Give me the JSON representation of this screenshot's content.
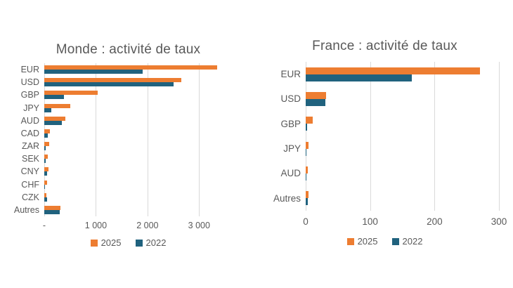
{
  "page": {
    "background": "#ffffff"
  },
  "colors": {
    "series_2025": "#ED7D31",
    "series_2022": "#20627E",
    "gridline": "#D9D9D9",
    "text": "#595959"
  },
  "chart_data": [
    {
      "type": "bar",
      "orientation": "horizontal",
      "title": "Monde : activité de taux",
      "categories": [
        "EUR",
        "USD",
        "GBP",
        "JPY",
        "AUD",
        "CAD",
        "ZAR",
        "SEK",
        "CNY",
        "CHF",
        "CZK",
        "Autres"
      ],
      "series": [
        {
          "name": "2025",
          "color": "#ED7D31",
          "values": [
            3350,
            2650,
            1030,
            500,
            410,
            105,
            90,
            70,
            75,
            55,
            40,
            310
          ]
        },
        {
          "name": "2022",
          "color": "#20627E",
          "values": [
            1900,
            2500,
            380,
            135,
            340,
            70,
            30,
            25,
            55,
            20,
            55,
            300
          ]
        }
      ],
      "xlim": [
        0,
        3500
      ],
      "ticks": [
        {
          "value": 0,
          "label": "-"
        },
        {
          "value": 1000,
          "label": "1 000"
        },
        {
          "value": 2000,
          "label": "2 000"
        },
        {
          "value": 3000,
          "label": "3 000"
        }
      ],
      "grid": true,
      "legend_position": "bottom",
      "legend": [
        "2025",
        "2022"
      ]
    },
    {
      "type": "bar",
      "orientation": "horizontal",
      "title": "France : activité de taux",
      "categories": [
        "EUR",
        "USD",
        "GBP",
        "JPY",
        "AUD",
        "Autres"
      ],
      "series": [
        {
          "name": "2025",
          "color": "#ED7D31",
          "values": [
            270,
            32,
            11,
            4,
            3,
            4
          ]
        },
        {
          "name": "2022",
          "color": "#20627E",
          "values": [
            165,
            30,
            2,
            1,
            1,
            3
          ]
        }
      ],
      "xlim": [
        0,
        300
      ],
      "ticks": [
        {
          "value": 0,
          "label": "0"
        },
        {
          "value": 100,
          "label": "100"
        },
        {
          "value": 200,
          "label": "200"
        },
        {
          "value": 300,
          "label": "300"
        }
      ],
      "grid": true,
      "legend_position": "bottom",
      "legend": [
        "2025",
        "2022"
      ]
    }
  ]
}
